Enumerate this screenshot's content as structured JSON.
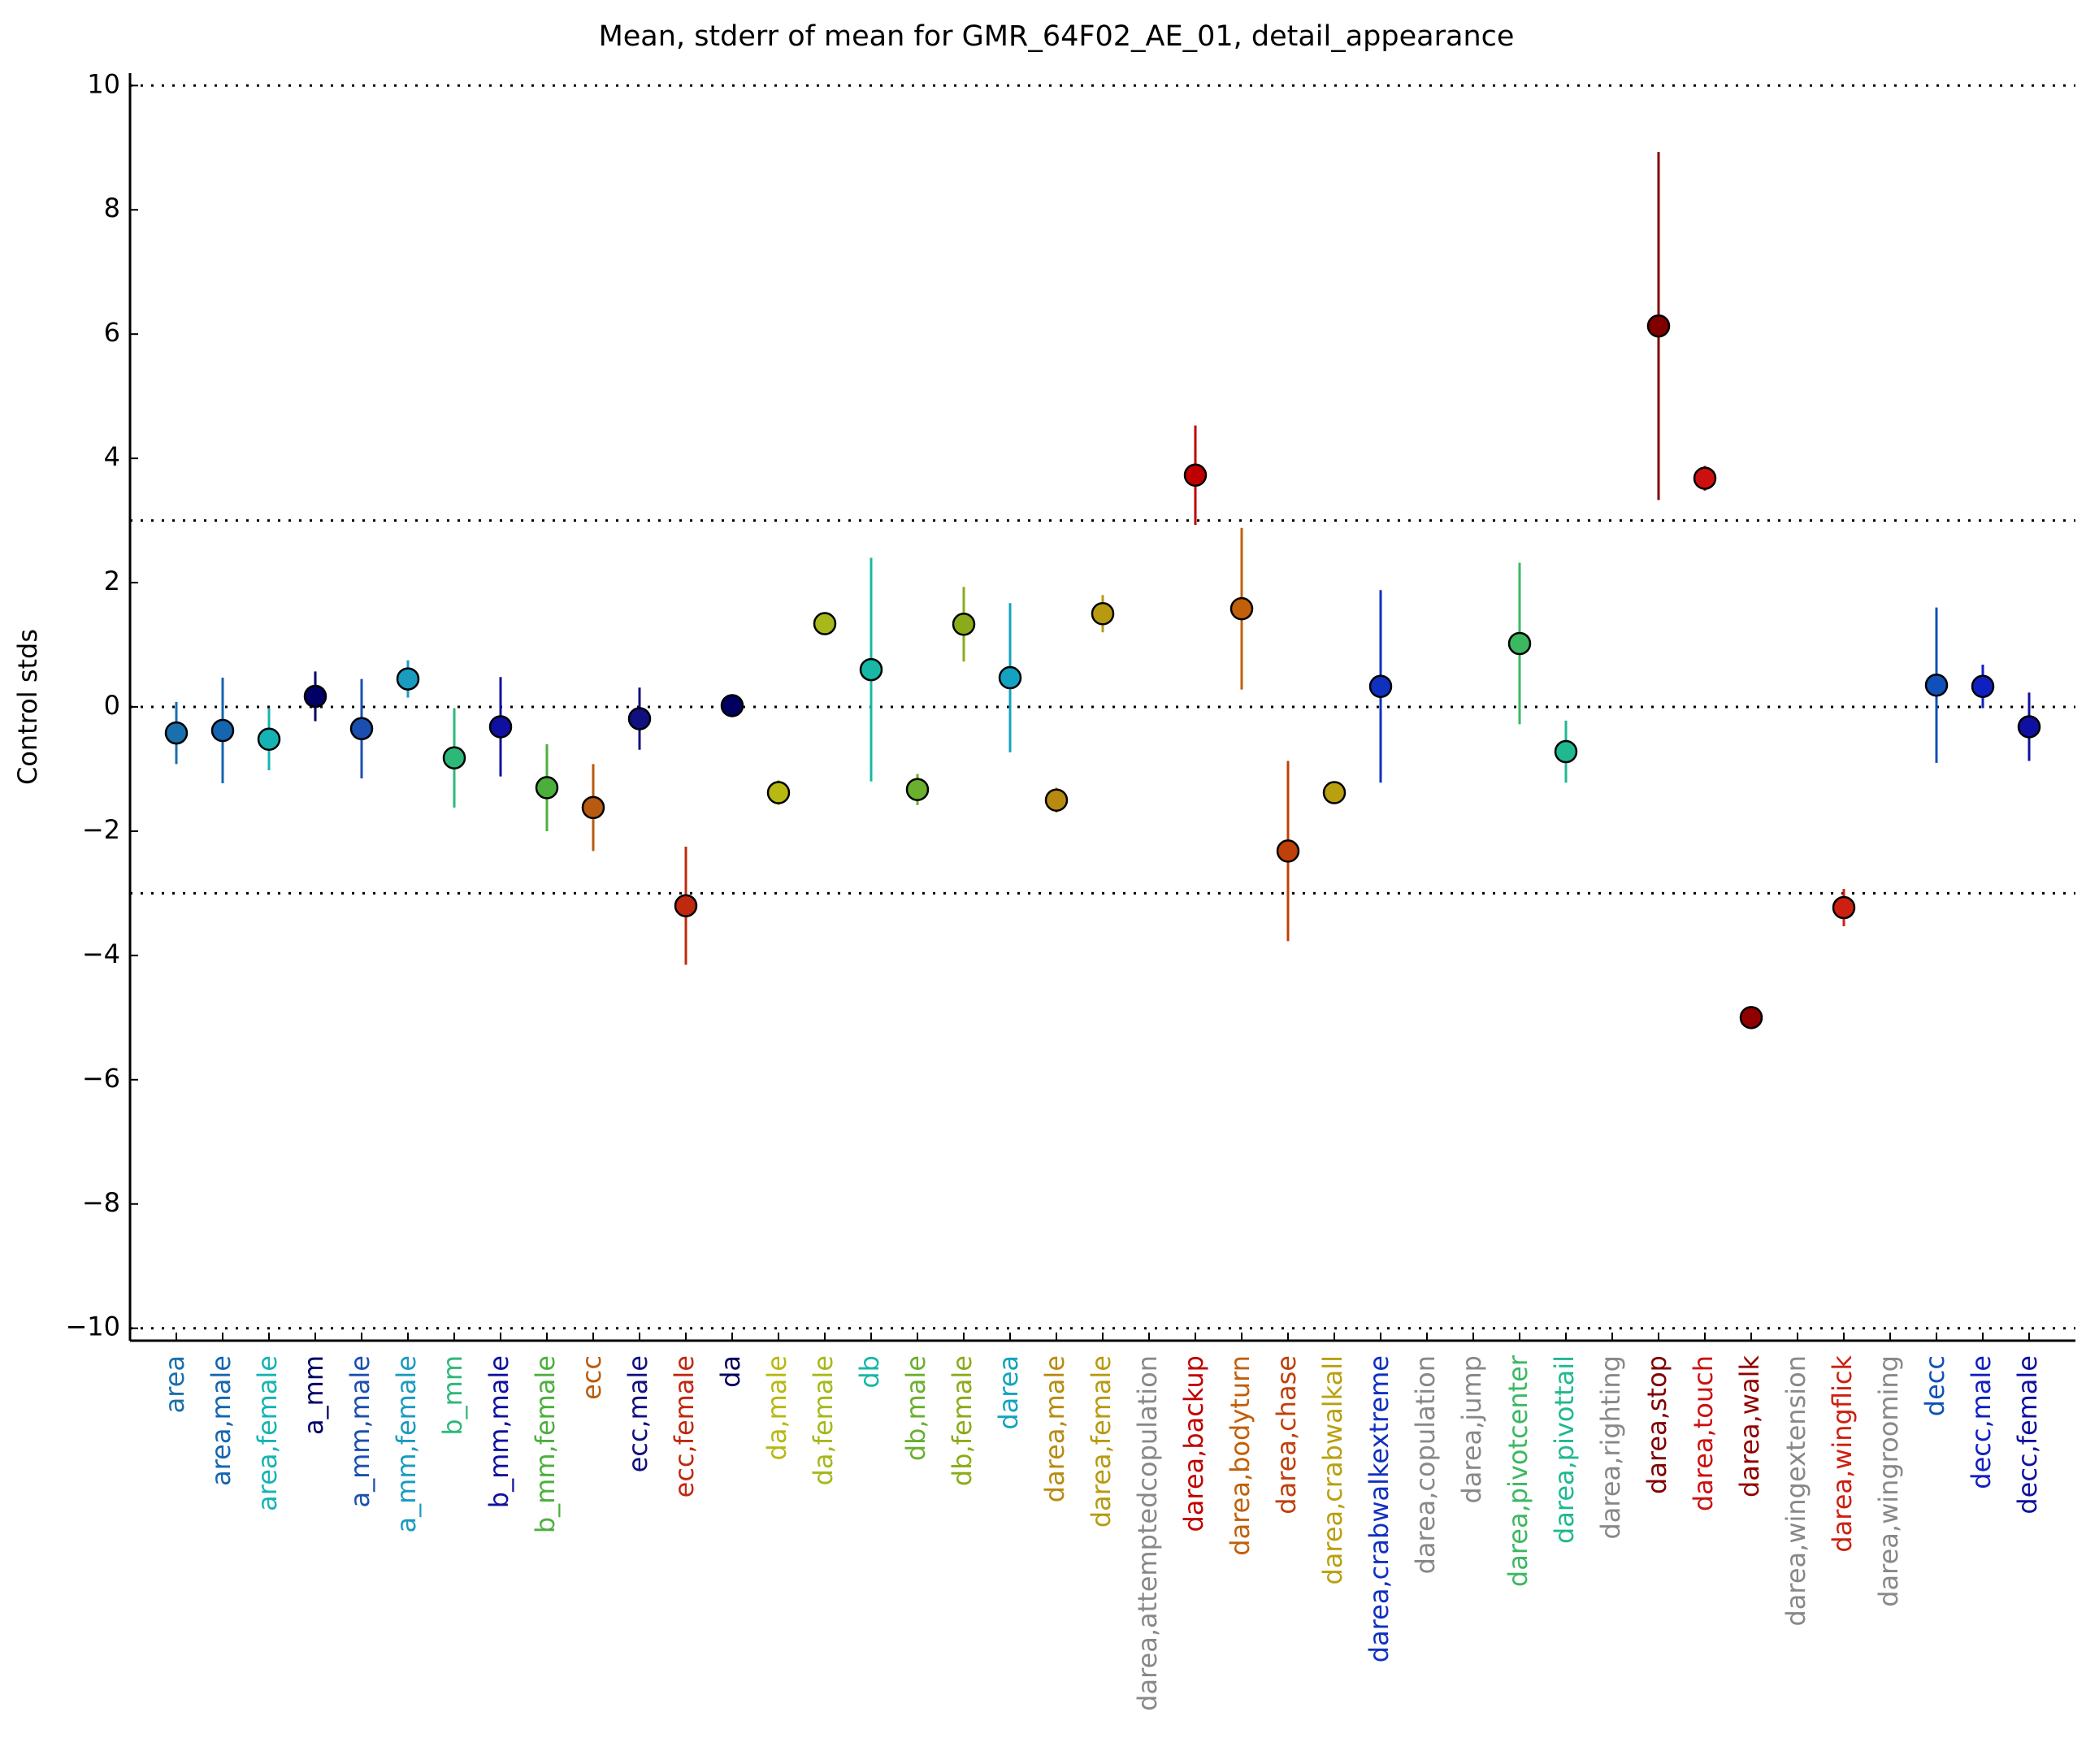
{
  "chart_data": {
    "type": "errorbar",
    "title": "Mean, stderr of mean for GMR_64F02_AE_01, detail_appearance",
    "y_label": "Control stds",
    "categories": [
      "area",
      "area,male",
      "area,female",
      "a_mm",
      "a_mm,male",
      "a_mm,female",
      "b_mm",
      "b_mm,male",
      "b_mm,female",
      "ecc",
      "ecc,male",
      "ecc,female",
      "da",
      "da,male",
      "da,female",
      "db",
      "db,male",
      "db,female",
      "darea",
      "darea,male",
      "darea,female",
      "darea,attemptedcopulation",
      "darea,backup",
      "darea,bodyturn",
      "darea,chase",
      "darea,crabwalkall",
      "darea,crabwalkextreme",
      "darea,copulation",
      "darea,jump",
      "darea,pivotcenter",
      "darea,pivottail",
      "darea,righting",
      "darea,stop",
      "darea,touch",
      "darea,walk",
      "darea,wingextension",
      "darea,wingflick",
      "darea,wingrooming",
      "decc",
      "decc,male",
      "decc,female"
    ],
    "values": [
      -0.42,
      -0.38,
      -0.52,
      0.17,
      -0.35,
      0.45,
      -0.82,
      -0.32,
      -1.3,
      -1.62,
      -0.19,
      -3.2,
      0.02,
      -1.38,
      1.34,
      0.6,
      -1.33,
      1.33,
      0.47,
      -1.5,
      1.5,
      null,
      3.73,
      1.58,
      -2.32,
      -1.38,
      0.33,
      null,
      null,
      1.02,
      -0.72,
      null,
      6.13,
      3.68,
      -5.0,
      null,
      -3.23,
      null,
      0.35,
      0.33,
      -0.32
    ],
    "errors": [
      0.5,
      0.85,
      0.5,
      0.4,
      0.8,
      0.3,
      0.8,
      0.8,
      0.7,
      0.7,
      0.5,
      0.95,
      0.15,
      0.2,
      0.1,
      1.8,
      0.25,
      0.6,
      1.2,
      0.2,
      0.3,
      null,
      0.8,
      1.3,
      1.45,
      0.15,
      1.55,
      null,
      null,
      1.3,
      0.5,
      null,
      2.8,
      0.2,
      0.15,
      null,
      0.3,
      null,
      1.25,
      0.35,
      0.55
    ],
    "colors": [
      "#1a6fad",
      "#1565b0",
      "#17b3b3",
      "#000066",
      "#1a4fb0",
      "#1a9bc0",
      "#2db87a",
      "#1010a0",
      "#4caf3c",
      "#b85b10",
      "#101080",
      "#c0280f",
      "#000060",
      "#b8b812",
      "#a6b81a",
      "#17b8a6",
      "#6aaf2d",
      "#8aab1a",
      "#13a3c0",
      "#b88a10",
      "#b89a10",
      "#888888",
      "#c00000",
      "#c0600a",
      "#c0400a",
      "#b8a010",
      "#1030c0",
      "#888888",
      "#888888",
      "#3cb860",
      "#20b890",
      "#888888",
      "#800000",
      "#cc1010",
      "#900000",
      "#888888",
      "#cc2010",
      "#888888",
      "#1050b8",
      "#1020c0",
      "#1010a0"
    ],
    "ylim": [
      -10.2,
      10.2
    ],
    "yticks": [
      {
        "value": -10,
        "label": "−10"
      },
      {
        "value": -8,
        "label": "−8"
      },
      {
        "value": -6,
        "label": "−6"
      },
      {
        "value": -4,
        "label": "−4"
      },
      {
        "value": -2,
        "label": "−2"
      },
      0,
      2,
      4,
      6,
      8,
      10
    ],
    "hlines": [
      -10,
      -3,
      0,
      3,
      10
    ]
  }
}
